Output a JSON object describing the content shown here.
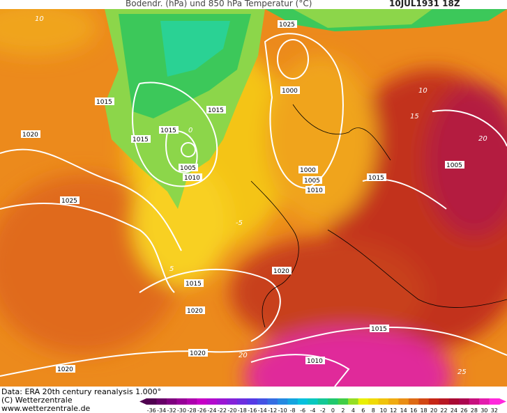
{
  "header": {
    "title": "Bodendr. (hPa) und 850 hPa Temperatur (°C)",
    "date": "10JUL1931 18Z"
  },
  "map": {
    "isobar_labels": [
      1025,
      1015,
      1020,
      1015,
      1015,
      1015,
      1005,
      1010,
      1000,
      1000,
      1005,
      1010,
      1015,
      1005,
      1025,
      1020,
      1015,
      1020,
      1020,
      1020,
      1015,
      1010
    ],
    "temperature_labels": [
      10,
      0,
      5,
      -5,
      10,
      15,
      20,
      25,
      20
    ]
  },
  "footer": {
    "source": "Data: ERA 20th century reanalysis 1.000°",
    "copyright": "(C) Wetterzentrale",
    "url": "www.wetterzentrale.de"
  },
  "legend": {
    "ticks": [
      -36,
      -34,
      -32,
      -30,
      -28,
      -26,
      -24,
      -22,
      -20,
      -18,
      -16,
      -14,
      -12,
      -10,
      -8,
      -6,
      -4,
      -2,
      0,
      2,
      4,
      6,
      8,
      10,
      12,
      14,
      16,
      18,
      20,
      22,
      24,
      26,
      28,
      30,
      32
    ]
  }
}
